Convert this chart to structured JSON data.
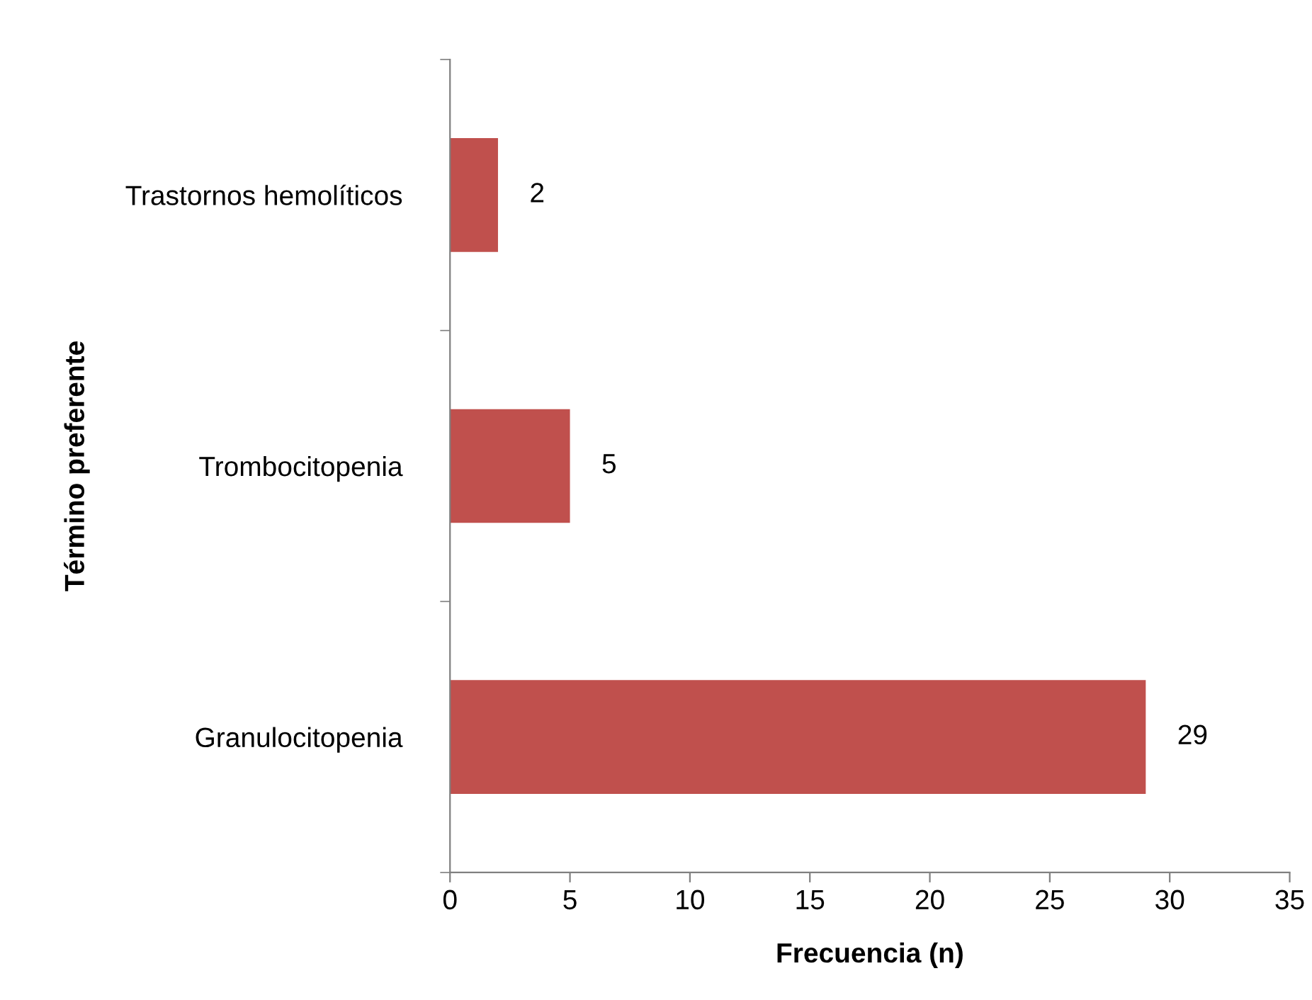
{
  "chart_data": {
    "type": "bar",
    "orientation": "horizontal",
    "categories": [
      "Trastornos hemolíticos",
      "Trombocitopenia",
      "Granulocitopenia"
    ],
    "values": [
      2,
      5,
      29
    ],
    "color": "#c0504d",
    "xlabel": "Frecuencia (n)",
    "ylabel": "Término preferente",
    "xlim": [
      0,
      35
    ],
    "xticks": [
      0,
      5,
      10,
      15,
      20,
      25,
      30,
      35
    ],
    "data_labels": true,
    "grid": false,
    "legend": false
  }
}
